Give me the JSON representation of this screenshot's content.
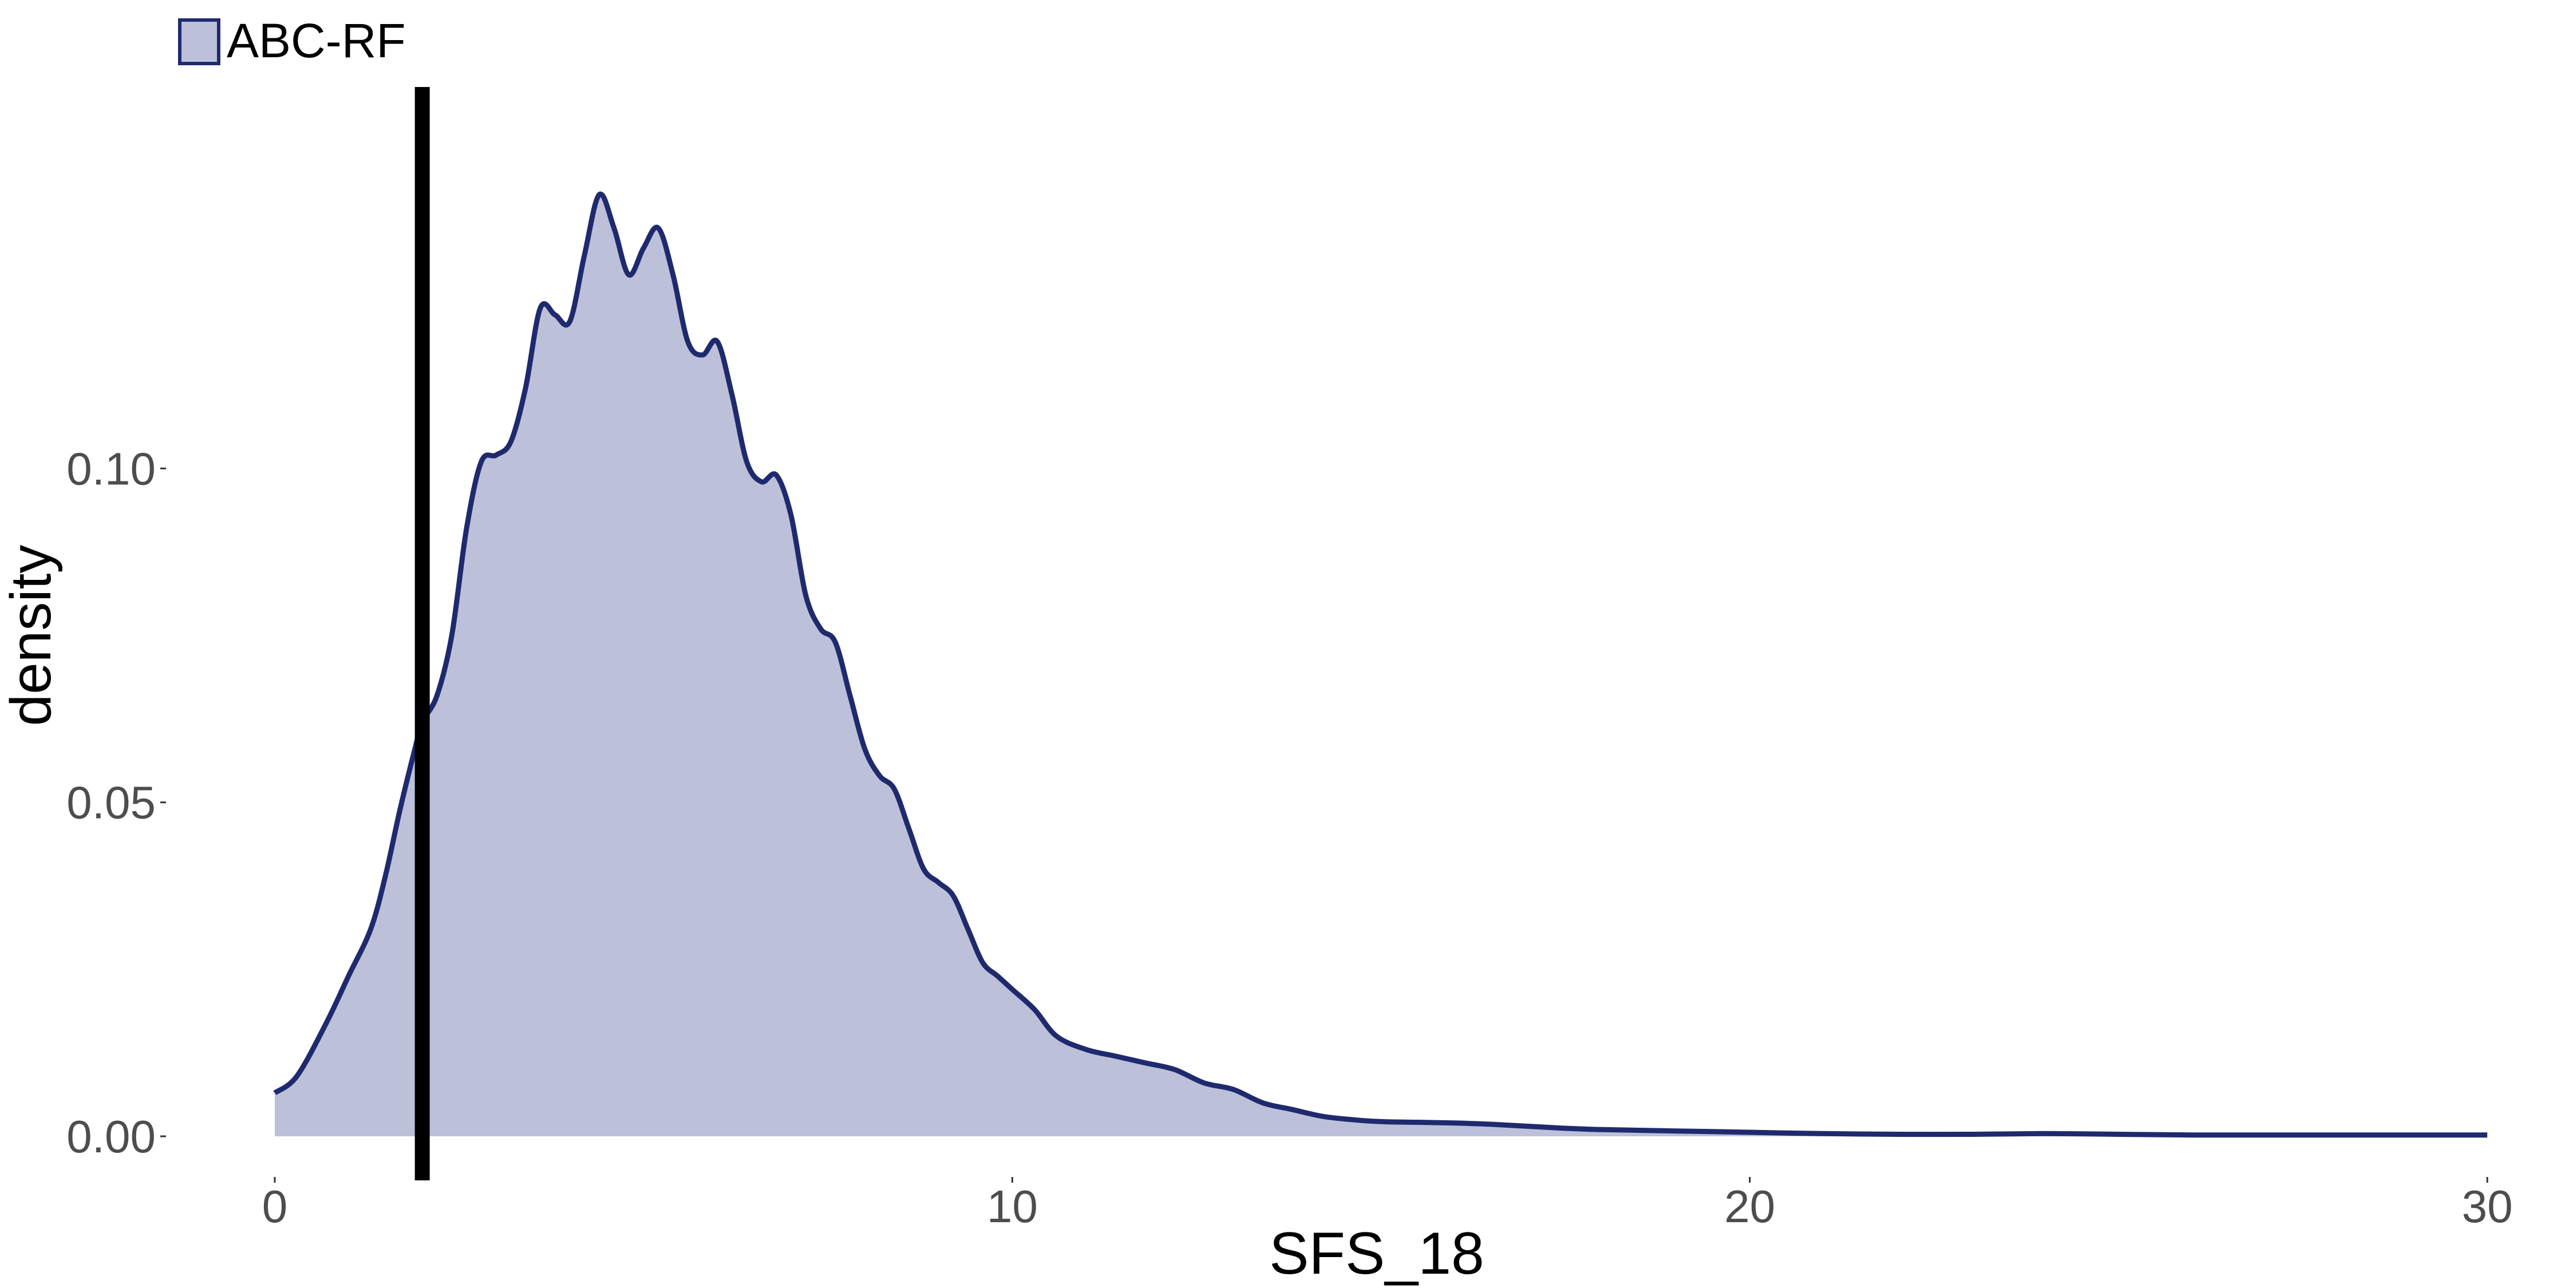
{
  "chart_data": {
    "type": "area",
    "title": "",
    "xlabel": "SFS_18",
    "ylabel": "density",
    "xlim": [
      0,
      30
    ],
    "ylim": [
      0,
      0.15
    ],
    "x_ticks": [
      0,
      10,
      20,
      30
    ],
    "x_tick_labels": [
      "0",
      "10",
      "20",
      "30"
    ],
    "y_ticks": [
      0,
      0.05,
      0.1
    ],
    "y_tick_labels": [
      "0.00",
      "0.05",
      "0.10"
    ],
    "grid": false,
    "legend_position": "top-left",
    "observed_line": {
      "x": 2.0,
      "color": "#000000"
    },
    "series": [
      {
        "name": "ABC-RF",
        "line_color": "#1f2a6e",
        "fill_color": "#bcc1d9",
        "x": [
          0,
          0.3,
          0.7,
          1.0,
          1.3,
          1.5,
          1.7,
          1.9,
          2.0,
          2.2,
          2.4,
          2.6,
          2.8,
          3.0,
          3.2,
          3.4,
          3.6,
          3.8,
          4.0,
          4.2,
          4.4,
          4.6,
          4.8,
          5.0,
          5.2,
          5.4,
          5.6,
          5.8,
          6.0,
          6.2,
          6.4,
          6.6,
          6.8,
          7.0,
          7.2,
          7.4,
          7.6,
          7.8,
          8.0,
          8.2,
          8.4,
          8.6,
          8.8,
          9.0,
          9.2,
          9.4,
          9.6,
          9.8,
          10.0,
          10.3,
          10.6,
          11.0,
          11.4,
          11.8,
          12.2,
          12.6,
          13.0,
          13.4,
          13.8,
          14.2,
          14.6,
          15.0,
          15.5,
          16.0,
          16.5,
          17.0,
          17.5,
          18.0,
          19.0,
          20.0,
          21.0,
          22.0,
          23.0,
          24.0,
          25.0,
          26.0,
          27.0,
          28.0,
          29.0,
          30.0
        ],
        "values": [
          0.0065,
          0.009,
          0.017,
          0.024,
          0.031,
          0.039,
          0.049,
          0.058,
          0.062,
          0.066,
          0.075,
          0.091,
          0.101,
          0.102,
          0.104,
          0.112,
          0.124,
          0.123,
          0.122,
          0.132,
          0.141,
          0.136,
          0.129,
          0.133,
          0.136,
          0.129,
          0.119,
          0.117,
          0.119,
          0.111,
          0.101,
          0.098,
          0.099,
          0.093,
          0.081,
          0.076,
          0.074,
          0.066,
          0.058,
          0.054,
          0.052,
          0.046,
          0.04,
          0.038,
          0.036,
          0.031,
          0.026,
          0.024,
          0.022,
          0.019,
          0.015,
          0.013,
          0.012,
          0.011,
          0.01,
          0.008,
          0.007,
          0.005,
          0.004,
          0.003,
          0.0025,
          0.0022,
          0.0021,
          0.002,
          0.0018,
          0.0015,
          0.0012,
          0.001,
          0.0008,
          0.0006,
          0.0004,
          0.0003,
          0.0003,
          0.0004,
          0.0003,
          0.0002,
          0.0002,
          0.0002,
          0.0002,
          0.0002
        ]
      }
    ]
  }
}
